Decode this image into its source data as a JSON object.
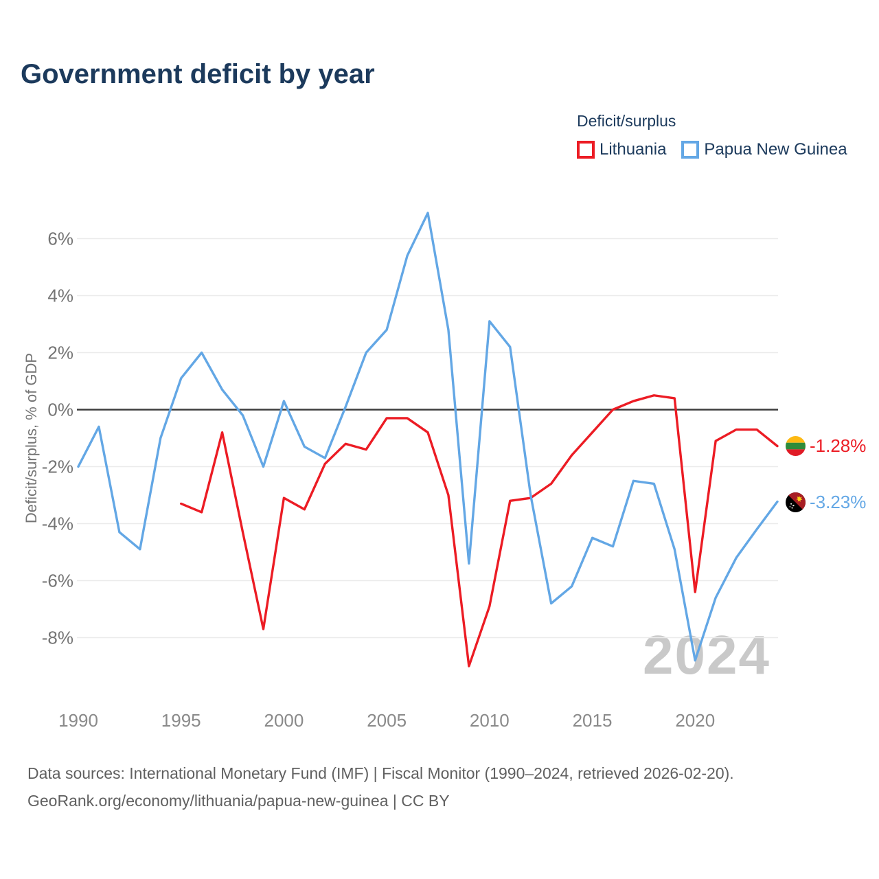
{
  "title": "Government deficit by year",
  "legend": {
    "title": "Deficit/surplus",
    "items": [
      {
        "label": "Lithuania",
        "color": "#EC1C24"
      },
      {
        "label": "Papua New Guinea",
        "color": "#63A7E5"
      }
    ]
  },
  "y_axis": {
    "title": "Deficit/surplus, % of GDP",
    "ticks": [
      {
        "label": "6%",
        "value": 6
      },
      {
        "label": "4%",
        "value": 4
      },
      {
        "label": "2%",
        "value": 2
      },
      {
        "label": "0%",
        "value": 0
      },
      {
        "label": "-2%",
        "value": -2
      },
      {
        "label": "-4%",
        "value": -4
      },
      {
        "label": "-6%",
        "value": -6
      },
      {
        "label": "-8%",
        "value": -8
      }
    ]
  },
  "x_axis": {
    "ticks": [
      {
        "label": "1990",
        "value": 1990
      },
      {
        "label": "1995",
        "value": 1995
      },
      {
        "label": "2000",
        "value": 2000
      },
      {
        "label": "2005",
        "value": 2005
      },
      {
        "label": "2010",
        "value": 2010
      },
      {
        "label": "2015",
        "value": 2015
      },
      {
        "label": "2020",
        "value": 2020
      }
    ]
  },
  "chart_data": {
    "type": "line",
    "title": "Government deficit by year",
    "xlabel": "",
    "ylabel": "Deficit/surplus, % of GDP",
    "unit": "% of GDP",
    "xlim": [
      1990,
      2024
    ],
    "ylim": [
      -9.5,
      7.5
    ],
    "grid": "horizontal",
    "zero_line": true,
    "legend_position": "top-right",
    "series": [
      {
        "name": "Lithuania",
        "color": "#EC1C24",
        "start_year": 1995,
        "values": [
          -3.3,
          -3.6,
          -0.8,
          -4.3,
          -7.7,
          -3.1,
          -3.5,
          -1.9,
          -1.2,
          -1.4,
          -0.3,
          -0.3,
          -0.8,
          -3.0,
          -9.0,
          -6.9,
          -3.2,
          -3.1,
          -2.6,
          -1.6,
          -0.8,
          0.0,
          0.3,
          0.5,
          0.4,
          -6.4,
          -1.1,
          -0.7,
          -0.7,
          -1.28
        ]
      },
      {
        "name": "Papua New Guinea",
        "color": "#63A7E5",
        "start_year": 1990,
        "values": [
          -2.0,
          -0.6,
          -4.3,
          -4.9,
          -1.0,
          1.1,
          2.0,
          0.7,
          -0.2,
          -2.0,
          0.3,
          -1.3,
          -1.7,
          0.1,
          2.0,
          2.8,
          5.4,
          6.9,
          2.8,
          -5.4,
          3.1,
          2.2,
          -3.0,
          -6.8,
          -6.2,
          -4.5,
          -4.8,
          -2.5,
          -2.6,
          -4.9,
          -8.8,
          -6.6,
          -5.2,
          -4.2,
          -3.23
        ]
      }
    ]
  },
  "end_labels": [
    {
      "series": "Lithuania",
      "text": "-1.28%",
      "flag": "lithuania"
    },
    {
      "series": "Papua New Guinea",
      "text": "-3.23%",
      "flag": "papua-new-guinea"
    }
  ],
  "watermark": "2024",
  "footer": {
    "line1": "Data sources: International Monetary Fund (IMF) | Fiscal Monitor (1990–2024, retrieved 2026-02-20).",
    "line2": "GeoRank.org/economy/lithuania/papua-new-guinea | CC BY"
  },
  "colors": {
    "title_text": "#1c3a5c",
    "axis_text": "#757575",
    "x_tick_text": "#8a8a8a",
    "gridline": "#ebebeb",
    "zero_line": "#3d3d3d",
    "watermark": "#c9c9c9",
    "footer_text": "#606060"
  }
}
